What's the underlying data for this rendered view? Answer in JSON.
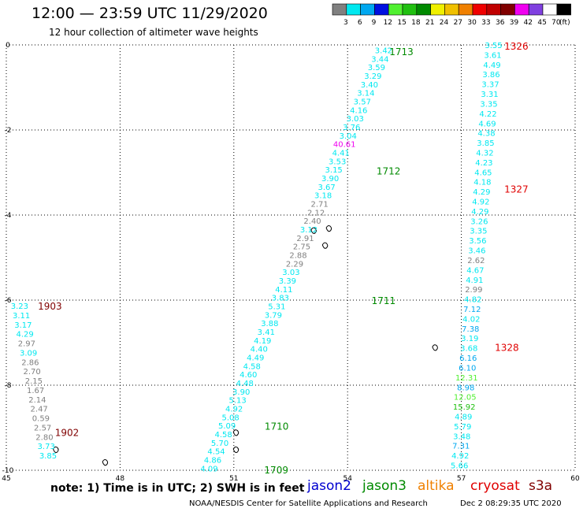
{
  "header": {
    "title": "12:00 — 23:59 UTC 11/29/2020",
    "subtitle": "12 hour collection of altimeter wave heights"
  },
  "colorbar": {
    "unit": "(ft)",
    "bins": [
      {
        "color": "#808080",
        "label": "3"
      },
      {
        "color": "#00e8f0",
        "label": "6"
      },
      {
        "color": "#00a8f0",
        "label": "9"
      },
      {
        "color": "#0010e0",
        "label": "12"
      },
      {
        "color": "#50f030",
        "label": "15"
      },
      {
        "color": "#20c010",
        "label": "18"
      },
      {
        "color": "#008a00",
        "label": "21"
      },
      {
        "color": "#f0f000",
        "label": "24"
      },
      {
        "color": "#f0c000",
        "label": "27"
      },
      {
        "color": "#f08000",
        "label": "30"
      },
      {
        "color": "#f00000",
        "label": "33"
      },
      {
        "color": "#c00000",
        "label": "36"
      },
      {
        "color": "#800000",
        "label": "39"
      },
      {
        "color": "#f000f0",
        "label": "42"
      },
      {
        "color": "#8040e0",
        "label": "45"
      },
      {
        "color": "#ffffff",
        "label": "70"
      },
      {
        "color": "#000000",
        "label": ""
      }
    ]
  },
  "chart_data": {
    "type": "scatter",
    "title": "12:00 — 23:59 UTC 11/29/2020",
    "subtitle": "12 hour collection of altimeter wave heights",
    "xlim": [
      45,
      60
    ],
    "ylim": [
      -10,
      0
    ],
    "xticks": [
      {
        "value": 45,
        "label": "45"
      },
      {
        "value": 48,
        "label": "48"
      },
      {
        "value": 51,
        "label": "51"
      },
      {
        "value": 54,
        "label": "54"
      },
      {
        "value": 57,
        "label": "57"
      },
      {
        "value": 60,
        "label": "60"
      }
    ],
    "yticks": [
      {
        "value": 0,
        "label": "0"
      },
      {
        "value": -2,
        "label": "-2"
      },
      {
        "value": -4,
        "label": "-4"
      },
      {
        "value": -6,
        "label": "-6"
      },
      {
        "value": -8,
        "label": "-8"
      },
      {
        "value": -10,
        "label": "-10"
      }
    ],
    "grid": true,
    "tracks": [
      {
        "mission": "jason3",
        "color": "#00e8f0",
        "time_labels": [
          {
            "text": "1713",
            "lon": 55.42,
            "lat": -0.15
          },
          {
            "text": "1712",
            "lon": 55.08,
            "lat": -2.95
          },
          {
            "text": "1711",
            "lon": 54.95,
            "lat": -6.0
          },
          {
            "text": "1710",
            "lon": 52.13,
            "lat": -8.95
          },
          {
            "text": "1709",
            "lon": 52.12,
            "lat": -9.98
          }
        ],
        "start": [
          54.95,
          -0.12
        ],
        "end": [
          50.35,
          -9.95
        ],
        "values": [
          "3.42",
          "3.44",
          "3.59",
          "3.29",
          "3.40",
          "3.14",
          "3.57",
          "4.16",
          "3.03",
          "3.76",
          "3.04",
          "40.61",
          "4.41",
          "3.53",
          "3.15",
          "3.90",
          "3.67",
          "3.18",
          "2.71",
          "2.12",
          "2.40",
          "3.12",
          "2.91",
          "2.75",
          "2.88",
          "2.29",
          "3.03",
          "3.39",
          "4.11",
          "3.83",
          "5.31",
          "3.79",
          "3.88",
          "3.41",
          "4.19",
          "4.40",
          "4.49",
          "4.58",
          "4.60",
          "4.48",
          "3.90",
          "5.13",
          "4.92",
          "5.08",
          "5.09",
          "4.58",
          "5.70",
          "4.54",
          "4.86",
          "4.09"
        ]
      },
      {
        "mission": "jason3",
        "color": "#00e8f0",
        "time_labels": [
          {
            "text": "1326",
            "lon": 58.45,
            "lat": -0.02
          },
          {
            "text": "1327",
            "lon": 58.45,
            "lat": -3.38
          },
          {
            "text": "1328",
            "lon": 58.2,
            "lat": -7.1
          }
        ],
        "start": [
          57.85,
          -0.0
        ],
        "end": [
          56.95,
          -9.88
        ],
        "values": [
          "3.55",
          "3.61",
          "4.49",
          "3.86",
          "3.37",
          "3.31",
          "3.35",
          "4.22",
          "4.69",
          "4.38",
          "3.85",
          "4.32",
          "4.23",
          "4.65",
          "4.18",
          "4.29",
          "4.92",
          "4.29",
          "3.26",
          "3.35",
          "3.56",
          "3.46",
          "2.62",
          "4.67",
          "4.91",
          "2.99",
          "4.82",
          "7.12",
          "4.02",
          "7.38",
          "3.19",
          "3.68",
          "6.16",
          "6.10",
          "12.31",
          "8.98",
          "12.05",
          "15.92",
          "4.89",
          "5.79",
          "3.48",
          "7.31",
          "4.92",
          "5.66"
        ]
      },
      {
        "mission": "jason3",
        "color": "#00e8f0",
        "time_labels": [
          {
            "text": "1903",
            "lon": 46.15,
            "lat": -6.13
          },
          {
            "text": "1902",
            "lon": 46.6,
            "lat": -9.1
          }
        ],
        "start": [
          45.35,
          -6.13
        ],
        "end": [
          46.1,
          -9.65
        ],
        "values": [
          "3.23",
          "3.11",
          "3.17",
          "4.29",
          "2.97",
          "3.09",
          "2.86",
          "2.70",
          "2.15",
          "1.67",
          "2.14",
          "2.47",
          "0.59",
          "2.57",
          "2.80",
          "3.73",
          "3.85"
        ]
      }
    ],
    "islands": [
      {
        "name": "island-a",
        "lon": 53.1,
        "lat": -4.35
      },
      {
        "name": "island-b",
        "lon": 53.5,
        "lat": -4.3
      },
      {
        "name": "island-c",
        "lon": 53.4,
        "lat": -4.7
      },
      {
        "name": "island-d",
        "lon": 56.3,
        "lat": -7.1
      },
      {
        "name": "island-e",
        "lon": 51.05,
        "lat": -9.1
      },
      {
        "name": "island-f",
        "lon": 51.05,
        "lat": -9.5
      },
      {
        "name": "island-g",
        "lon": 46.3,
        "lat": -9.5
      },
      {
        "name": "island-h",
        "lon": 47.6,
        "lat": -9.8
      }
    ]
  },
  "footer": {
    "note": "note: 1) Time is in UTC; 2) SWH is in feet",
    "missions": [
      {
        "name": "jason2",
        "color": "#0000d0"
      },
      {
        "name": "jason3",
        "color": "#008a00"
      },
      {
        "name": "altika",
        "color": "#f08000"
      },
      {
        "name": "cryosat",
        "color": "#e00000"
      },
      {
        "name": "s3a",
        "color": "#800000"
      }
    ],
    "credit": "NOAA/NESDIS Center for Satellite Applications and Research",
    "timestamp": "Dec  2 08:29:35 UTC 2020"
  }
}
